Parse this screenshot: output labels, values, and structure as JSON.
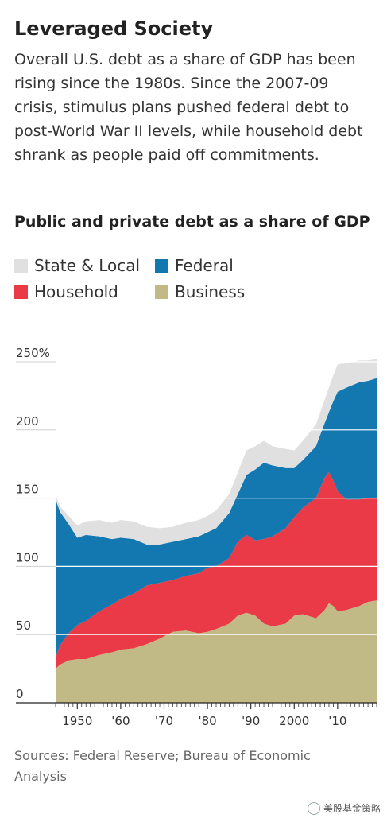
{
  "title": "Leveraged Society",
  "subtitle": "Overall U.S. debt as a share of GDP has been rising since the 1980s. Since the 2007-09 crisis, stimulus plans pushed federal debt to post-World War II levels, while household debt shrank as people paid off commitments.",
  "source": "Sources: Federal Reserve; Bureau of Economic Analysis",
  "watermark": "美股基金策略",
  "colors": {
    "state_local": "#e0e0e0",
    "federal": "#1478b0",
    "household": "#ea3a47",
    "business": "#c2ba86"
  },
  "chart_data": {
    "type": "area",
    "stacked": true,
    "title": "Public and private debt as a share of GDP",
    "xlabel": "",
    "ylabel": "",
    "xlim": [
      1945,
      2019
    ],
    "ylim": [
      0,
      250
    ],
    "yticks": [
      0,
      50,
      100,
      150,
      200,
      250
    ],
    "ytick_labels": [
      "0",
      "50",
      "100",
      "150",
      "200",
      "250%"
    ],
    "xticks": [
      1950,
      1960,
      1970,
      1980,
      1990,
      2000,
      2010
    ],
    "xtick_labels": [
      "1950",
      "'60",
      "'70",
      "'80",
      "'90",
      "2000",
      "'10"
    ],
    "legend_position": "top",
    "x": [
      1945,
      1946,
      1948,
      1950,
      1952,
      1955,
      1958,
      1960,
      1963,
      1966,
      1969,
      1972,
      1975,
      1978,
      1980,
      1982,
      1985,
      1987,
      1989,
      1991,
      1993,
      1995,
      1998,
      2000,
      2002,
      2005,
      2007,
      2008,
      2009,
      2010,
      2012,
      2015,
      2017,
      2019
    ],
    "series": [
      {
        "name": "Business",
        "color": "#c2ba86",
        "values": [
          25,
          28,
          31,
          32,
          32,
          35,
          37,
          39,
          40,
          43,
          47,
          52,
          53,
          51,
          52,
          54,
          58,
          64,
          66,
          64,
          58,
          56,
          58,
          64,
          65,
          62,
          68,
          73,
          71,
          67,
          68,
          71,
          74,
          75
        ]
      },
      {
        "name": "Household",
        "color": "#ea3a47",
        "values": [
          8,
          14,
          20,
          25,
          28,
          32,
          35,
          37,
          40,
          43,
          41,
          38,
          40,
          44,
          47,
          46,
          48,
          54,
          57,
          55,
          62,
          66,
          70,
          72,
          78,
          88,
          97,
          96,
          92,
          88,
          81,
          78,
          76,
          75
        ]
      },
      {
        "name": "Federal",
        "color": "#1478b0",
        "values": [
          116,
          98,
          80,
          64,
          63,
          55,
          48,
          45,
          40,
          30,
          28,
          28,
          27,
          27,
          26,
          28,
          33,
          35,
          44,
          52,
          56,
          52,
          44,
          36,
          35,
          38,
          40,
          44,
          58,
          73,
          82,
          86,
          86,
          88
        ]
      },
      {
        "name": "State & Local",
        "color": "#e0e0e0",
        "values": [
          3,
          4,
          6,
          9,
          10,
          12,
          12,
          13,
          13,
          13,
          12,
          11,
          12,
          12,
          12,
          13,
          14,
          16,
          18,
          17,
          16,
          14,
          14,
          13,
          14,
          16,
          17,
          18,
          19,
          20,
          18,
          16,
          15,
          14
        ]
      }
    ]
  }
}
